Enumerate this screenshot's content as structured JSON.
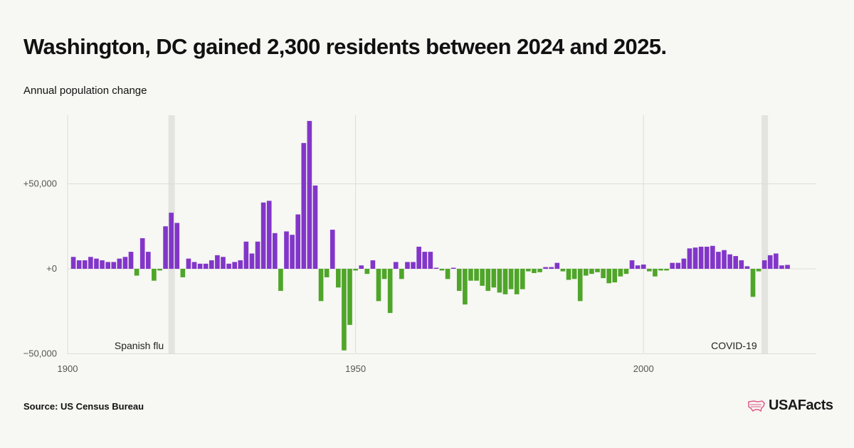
{
  "header": {
    "title": "Washington, DC gained 2,300 residents between 2024 and 2025.",
    "subtitle": "Annual population change"
  },
  "footer": {
    "source": "Source: US Census Bureau",
    "logo_text": "USAFacts",
    "logo_icon": "us-map-icon"
  },
  "colors": {
    "positive": "#8236c9",
    "negative": "#4fa529",
    "band": "#e3e3df",
    "grid": "#dcdcd8",
    "brand": "#e05a8a"
  },
  "chart_data": {
    "type": "bar",
    "title": "Washington, DC gained 2,300 residents between 2024 and 2025.",
    "subtitle": "Annual population change",
    "xlim": [
      1900,
      2030
    ],
    "ylim": [
      -50000,
      90000
    ],
    "x_ticks": [
      {
        "value": 1900,
        "label": "1900"
      },
      {
        "value": 1950,
        "label": "1950"
      },
      {
        "value": 2000,
        "label": "2000"
      }
    ],
    "y_ticks": [
      {
        "value": 50000,
        "label": "+50,000"
      },
      {
        "value": 0,
        "label": "+0"
      },
      {
        "value": -50000,
        "label": "−50,000"
      }
    ],
    "grid": true,
    "highlight_bands": [
      {
        "year": 1918,
        "label": "Spanish flu"
      },
      {
        "year": 2021,
        "label": "COVID-19"
      }
    ],
    "years": [
      1901,
      1902,
      1903,
      1904,
      1905,
      1906,
      1907,
      1908,
      1909,
      1910,
      1911,
      1912,
      1913,
      1914,
      1915,
      1916,
      1917,
      1918,
      1919,
      1920,
      1921,
      1922,
      1923,
      1924,
      1925,
      1926,
      1927,
      1928,
      1929,
      1930,
      1931,
      1932,
      1933,
      1934,
      1935,
      1936,
      1937,
      1938,
      1939,
      1940,
      1941,
      1942,
      1943,
      1944,
      1945,
      1946,
      1947,
      1948,
      1949,
      1950,
      1951,
      1952,
      1953,
      1954,
      1955,
      1956,
      1957,
      1958,
      1959,
      1960,
      1961,
      1962,
      1963,
      1964,
      1965,
      1966,
      1967,
      1968,
      1969,
      1970,
      1971,
      1972,
      1973,
      1974,
      1975,
      1976,
      1977,
      1978,
      1979,
      1980,
      1981,
      1982,
      1983,
      1984,
      1985,
      1986,
      1987,
      1988,
      1989,
      1990,
      1991,
      1992,
      1993,
      1994,
      1995,
      1996,
      1997,
      1998,
      1999,
      2000,
      2001,
      2002,
      2003,
      2004,
      2005,
      2006,
      2007,
      2008,
      2009,
      2010,
      2011,
      2012,
      2013,
      2014,
      2015,
      2016,
      2017,
      2018,
      2019,
      2020,
      2021,
      2022,
      2023,
      2024,
      2025
    ],
    "values": [
      7000,
      5000,
      5000,
      7000,
      6000,
      5000,
      4000,
      4000,
      6000,
      7000,
      10000,
      -4000,
      18000,
      10000,
      -7000,
      -1000,
      25000,
      33000,
      27000,
      -5000,
      6000,
      4000,
      3000,
      3000,
      5000,
      8000,
      7000,
      3000,
      4000,
      5000,
      16000,
      9000,
      16000,
      39000,
      40000,
      21000,
      -13000,
      22000,
      20000,
      32000,
      74000,
      87000,
      49000,
      -19000,
      -5000,
      23000,
      -11000,
      -48000,
      -33000,
      -1000,
      2000,
      -3000,
      5000,
      -19000,
      -6000,
      -26000,
      4000,
      -6000,
      4000,
      4000,
      13000,
      10000,
      10000,
      0,
      -1000,
      -6000,
      0,
      -13000,
      -21000,
      -7000,
      -7000,
      -10000,
      -13000,
      -11000,
      -14000,
      -15000,
      -12000,
      -15000,
      -12000,
      -1500,
      -2500,
      -2000,
      1000,
      1000,
      3500,
      -1500,
      -6500,
      -6000,
      -19000,
      -4000,
      -3000,
      -2000,
      -5500,
      -8500,
      -8000,
      -4500,
      -3000,
      5000,
      2000,
      2500,
      -1500,
      -4500,
      -1000,
      -1000,
      3500,
      3500,
      6000,
      12000,
      12500,
      13000,
      13000,
      13500,
      10000,
      11000,
      8500,
      7500,
      5000,
      1500,
      -16500,
      -1500,
      5000,
      8000,
      9000,
      2000,
      2300
    ]
  }
}
